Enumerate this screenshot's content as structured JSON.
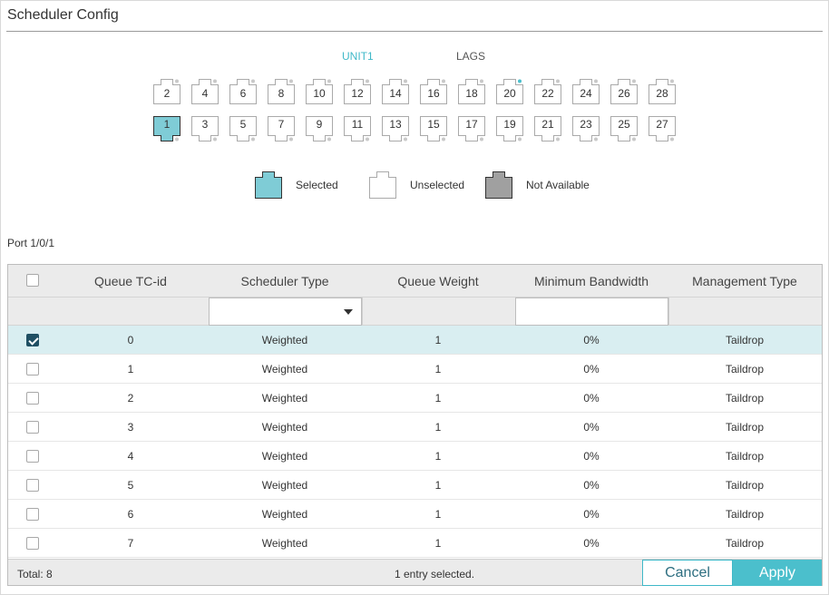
{
  "page": {
    "title": "Scheduler Config"
  },
  "unit_tabs": {
    "active": "UNIT1",
    "other": "LAGS"
  },
  "ports": {
    "top": [
      "2",
      "4",
      "6",
      "8",
      "10",
      "12",
      "14",
      "16",
      "18",
      "20",
      "22",
      "24",
      "26",
      "28"
    ],
    "bottom": [
      "1",
      "3",
      "5",
      "7",
      "9",
      "11",
      "13",
      "15",
      "17",
      "19",
      "21",
      "23",
      "25",
      "27"
    ],
    "selected": "1"
  },
  "legend": {
    "selected": "Selected",
    "unselected": "Unselected",
    "not_available": "Not Available"
  },
  "port_caption": "Port 1/0/1",
  "table": {
    "columns": [
      "Queue TC-id",
      "Scheduler Type",
      "Queue Weight",
      "Minimum Bandwidth",
      "Management Type"
    ],
    "rows": [
      {
        "checked": true,
        "tc": "0",
        "type": "Weighted",
        "weight": "1",
        "bw": "0%",
        "mgmt": "Taildrop"
      },
      {
        "checked": false,
        "tc": "1",
        "type": "Weighted",
        "weight": "1",
        "bw": "0%",
        "mgmt": "Taildrop"
      },
      {
        "checked": false,
        "tc": "2",
        "type": "Weighted",
        "weight": "1",
        "bw": "0%",
        "mgmt": "Taildrop"
      },
      {
        "checked": false,
        "tc": "3",
        "type": "Weighted",
        "weight": "1",
        "bw": "0%",
        "mgmt": "Taildrop"
      },
      {
        "checked": false,
        "tc": "4",
        "type": "Weighted",
        "weight": "1",
        "bw": "0%",
        "mgmt": "Taildrop"
      },
      {
        "checked": false,
        "tc": "5",
        "type": "Weighted",
        "weight": "1",
        "bw": "0%",
        "mgmt": "Taildrop"
      },
      {
        "checked": false,
        "tc": "6",
        "type": "Weighted",
        "weight": "1",
        "bw": "0%",
        "mgmt": "Taildrop"
      },
      {
        "checked": false,
        "tc": "7",
        "type": "Weighted",
        "weight": "1",
        "bw": "0%",
        "mgmt": "Taildrop"
      }
    ],
    "total": "Total: 8",
    "status": "1 entry selected."
  },
  "buttons": {
    "cancel": "Cancel",
    "apply": "Apply"
  },
  "colors": {
    "accent": "#4bbfcc",
    "selected_port": "#7fccd6",
    "not_available": "#a0a0a0",
    "selected_row": "#d9eef1"
  }
}
